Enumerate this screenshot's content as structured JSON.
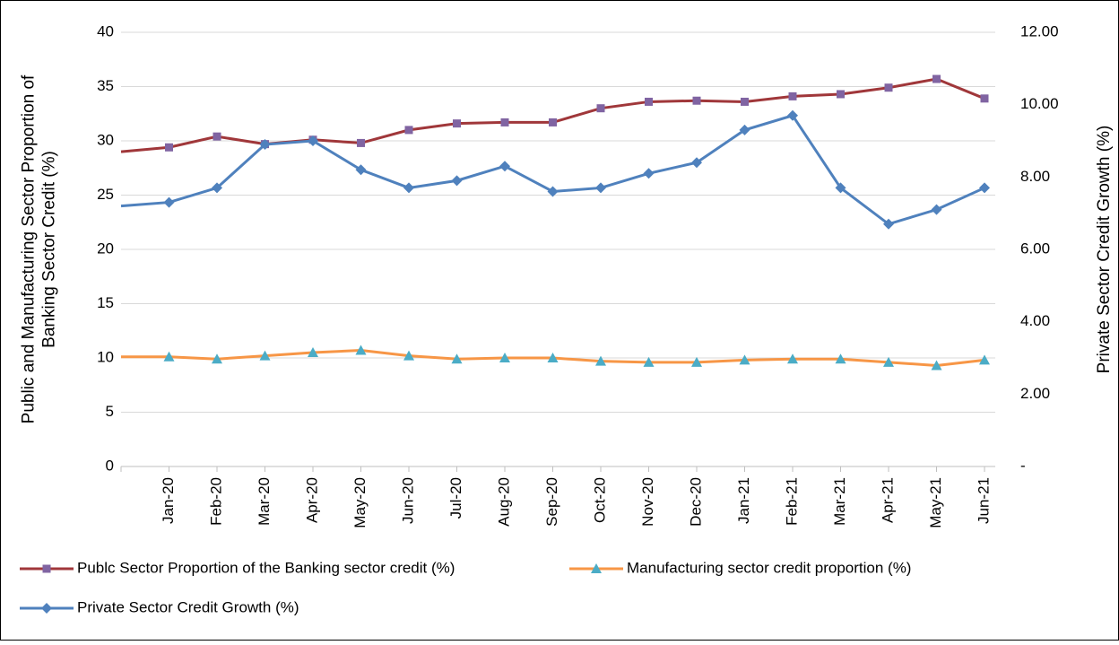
{
  "chart_data": {
    "type": "line",
    "y_label": "Public and Manufacturing Sector Proportion of Banking Sector Credit (%)",
    "y2_label": "Private Sector Credit Growth (%)",
    "categories": [
      null,
      "Jan-20",
      "Feb-20",
      "Mar-20",
      "Apr-20",
      "May-20",
      "Jun-20",
      "Jul-20",
      "Aug-20",
      "Sep-20",
      "Oct-20",
      "Nov-20",
      "Dec-20",
      "Jan-21",
      "Feb-21",
      "Mar-21",
      "Apr-21",
      "May-21",
      "Jun-21"
    ],
    "series": [
      {
        "name": "Publc Sector Proportion of the Banking sector credit (%)",
        "color": "#A0373A",
        "marker_color": "#8064A2",
        "marker": "square",
        "values": [
          29.0,
          29.4,
          30.4,
          29.7,
          30.1,
          29.8,
          31.0,
          31.6,
          31.7,
          31.7,
          33.0,
          33.6,
          33.7,
          33.6,
          34.1,
          34.3,
          34.9,
          35.7,
          33.9
        ]
      },
      {
        "name": "Manufacturing sector credit proportion (%)",
        "color": "#F79646",
        "marker_color": "#4BACC6",
        "marker": "triangle",
        "values": [
          10.1,
          10.1,
          9.9,
          10.2,
          10.5,
          10.7,
          10.2,
          9.9,
          10.0,
          10.0,
          9.7,
          9.6,
          9.6,
          9.8,
          9.9,
          9.9,
          9.6,
          9.3,
          9.8
        ]
      },
      {
        "name": "Private Sector Credit Growth (%)",
        "color": "#4F81BD",
        "marker_color": "#4F81BD",
        "marker": "diamond",
        "axis": "y2",
        "values": [
          7.2,
          7.3,
          7.7,
          8.9,
          9.0,
          8.2,
          7.7,
          7.9,
          8.3,
          7.6,
          7.7,
          8.1,
          8.4,
          9.3,
          9.7,
          7.7,
          6.7,
          7.1,
          7.7
        ]
      }
    ],
    "ylim": [
      0,
      40
    ],
    "yticks": [
      0,
      5,
      10,
      15,
      20,
      25,
      30,
      35,
      40
    ],
    "y2lim": [
      0,
      12
    ],
    "y2ticks": [
      {
        "value": 0,
        "label": "-"
      },
      {
        "value": 2,
        "label": "2.00"
      },
      {
        "value": 4,
        "label": "4.00"
      },
      {
        "value": 6,
        "label": "6.00"
      },
      {
        "value": 8,
        "label": "8.00"
      },
      {
        "value": 10,
        "label": "10.00"
      },
      {
        "value": 12,
        "label": "12.00"
      }
    ],
    "grid": true
  }
}
